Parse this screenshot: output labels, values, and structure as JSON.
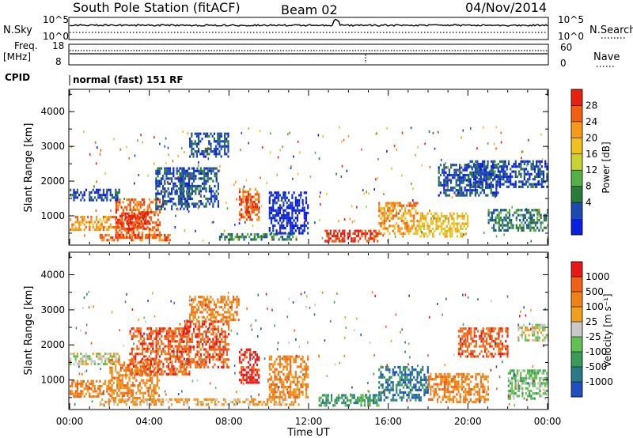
{
  "header": {
    "station": "South Pole Station (fitACF)",
    "beam": "Beam 02",
    "date": "04/Nov/2014"
  },
  "top_panels": {
    "nsky_label": "N.Sky",
    "nsky_ticks": [
      "10^5",
      "10^0"
    ],
    "nsearch_label": "N.Search",
    "nsearch_ticks": [
      "10^5",
      "10^0"
    ],
    "freq_label": "Freq.",
    "freq_unit": "[MHz]",
    "freq_ticks": [
      "18",
      "8"
    ],
    "nave_label": "Nave",
    "nave_ticks": [
      "60",
      "0"
    ],
    "cpid_label": "CPID",
    "cpid_text": "normal (fast) 151 RF"
  },
  "chart_data": [
    {
      "type": "heatmap",
      "name": "power",
      "ylabel": "Slant Range [km]",
      "ylim": [
        180,
        4620
      ],
      "y_ticks": [
        1000,
        2000,
        3000,
        4000
      ],
      "x_range_hours": [
        0,
        24
      ],
      "colorbar": {
        "label": "Power [dB]",
        "ticks": [
          "28",
          "24",
          "20",
          "16",
          "12",
          "8",
          "4"
        ],
        "colors": [
          "#0b1fe0",
          "#1c4ab0",
          "#2a7a3a",
          "#55b045",
          "#c8d230",
          "#f0c020",
          "#f89818",
          "#f06010",
          "#e82010"
        ]
      },
      "echo_regions": [
        {
          "t": [
            0.0,
            2.3
          ],
          "r": [
            600,
            1000
          ],
          "c": 6
        },
        {
          "t": [
            0.0,
            2.5
          ],
          "r": [
            1480,
            1780
          ],
          "c": 1
        },
        {
          "t": [
            2.3,
            4.5
          ],
          "r": [
            400,
            1500
          ],
          "c": 7
        },
        {
          "t": [
            2.5,
            4.0
          ],
          "r": [
            600,
            1100
          ],
          "c": 8
        },
        {
          "t": [
            1.5,
            5.0
          ],
          "r": [
            300,
            480
          ],
          "c": 7
        },
        {
          "t": [
            4.3,
            6.0
          ],
          "r": [
            1200,
            2400
          ],
          "c": 1
        },
        {
          "t": [
            5.5,
            7.5
          ],
          "r": [
            1300,
            2400
          ],
          "c": 1
        },
        {
          "t": [
            6.0,
            8.0
          ],
          "r": [
            2700,
            3400
          ],
          "c": 1
        },
        {
          "t": [
            8.5,
            9.5
          ],
          "r": [
            900,
            1800
          ],
          "c": 7
        },
        {
          "t": [
            8.8,
            9.3
          ],
          "r": [
            1100,
            1500
          ],
          "c": 8
        },
        {
          "t": [
            7.5,
            11.5
          ],
          "r": [
            300,
            500
          ],
          "c": 2
        },
        {
          "t": [
            10.0,
            12.0
          ],
          "r": [
            500,
            1700
          ],
          "c": 0
        },
        {
          "t": [
            12.8,
            15.5
          ],
          "r": [
            300,
            600
          ],
          "c": 8
        },
        {
          "t": [
            15.5,
            17.5
          ],
          "r": [
            500,
            1400
          ],
          "c": 6
        },
        {
          "t": [
            17.5,
            20.0
          ],
          "r": [
            400,
            1100
          ],
          "c": 5
        },
        {
          "t": [
            18.5,
            21.5
          ],
          "r": [
            1600,
            2500
          ],
          "c": 1
        },
        {
          "t": [
            21.0,
            24.0
          ],
          "r": [
            600,
            1200
          ],
          "c": 2
        },
        {
          "t": [
            20.0,
            24.0
          ],
          "r": [
            1800,
            2600
          ],
          "c": 1
        }
      ]
    },
    {
      "type": "heatmap",
      "name": "velocity",
      "ylabel": "Slant Range [km]",
      "xlabel": "Time UT",
      "ylim": [
        180,
        4620
      ],
      "y_ticks": [
        1000,
        2000,
        3000,
        4000
      ],
      "x_ticks": [
        "00:00",
        "04:00",
        "08:00",
        "12:00",
        "16:00",
        "20:00",
        "00:00"
      ],
      "x_range_hours": [
        0,
        24
      ],
      "colorbar": {
        "label": "Velocity [m s⁻¹]",
        "ticks": [
          "1000",
          "500",
          "100",
          "25",
          "-25",
          "-100",
          "-500",
          "-1000"
        ],
        "colors": [
          "#2050c0",
          "#2a7a8a",
          "#3a9a5a",
          "#60c050",
          "#c8c8c8",
          "#f0a020",
          "#f08018",
          "#f06018",
          "#e81818"
        ]
      },
      "echo_regions": [
        {
          "t": [
            0.0,
            2.0
          ],
          "r": [
            500,
            1000
          ],
          "c": 6
        },
        {
          "t": [
            0.0,
            2.5
          ],
          "r": [
            1480,
            1780
          ],
          "c": 4
        },
        {
          "t": [
            2.0,
            4.5
          ],
          "r": [
            400,
            1600
          ],
          "c": 6
        },
        {
          "t": [
            3.0,
            6.0
          ],
          "r": [
            1200,
            2500
          ],
          "c": 7
        },
        {
          "t": [
            5.5,
            8.0
          ],
          "r": [
            1400,
            2700
          ],
          "c": 7
        },
        {
          "t": [
            6.0,
            8.5
          ],
          "r": [
            2700,
            3400
          ],
          "c": 6
        },
        {
          "t": [
            8.5,
            9.5
          ],
          "r": [
            900,
            1900
          ],
          "c": 8
        },
        {
          "t": [
            10.0,
            12.0
          ],
          "r": [
            500,
            1700
          ],
          "c": 6
        },
        {
          "t": [
            1.5,
            11.5
          ],
          "r": [
            300,
            480
          ],
          "c": 5
        },
        {
          "t": [
            12.5,
            15.5
          ],
          "r": [
            250,
            600
          ],
          "c": 2
        },
        {
          "t": [
            15.5,
            18.0
          ],
          "r": [
            400,
            1400
          ],
          "c": 1
        },
        {
          "t": [
            18.0,
            21.0
          ],
          "r": [
            400,
            1200
          ],
          "c": 6
        },
        {
          "t": [
            19.5,
            22.0
          ],
          "r": [
            1700,
            2500
          ],
          "c": 7
        },
        {
          "t": [
            22.0,
            24.0
          ],
          "r": [
            500,
            1300
          ],
          "c": 3
        },
        {
          "t": [
            22.5,
            24.0
          ],
          "r": [
            2100,
            2600
          ],
          "c": 4
        }
      ]
    }
  ]
}
